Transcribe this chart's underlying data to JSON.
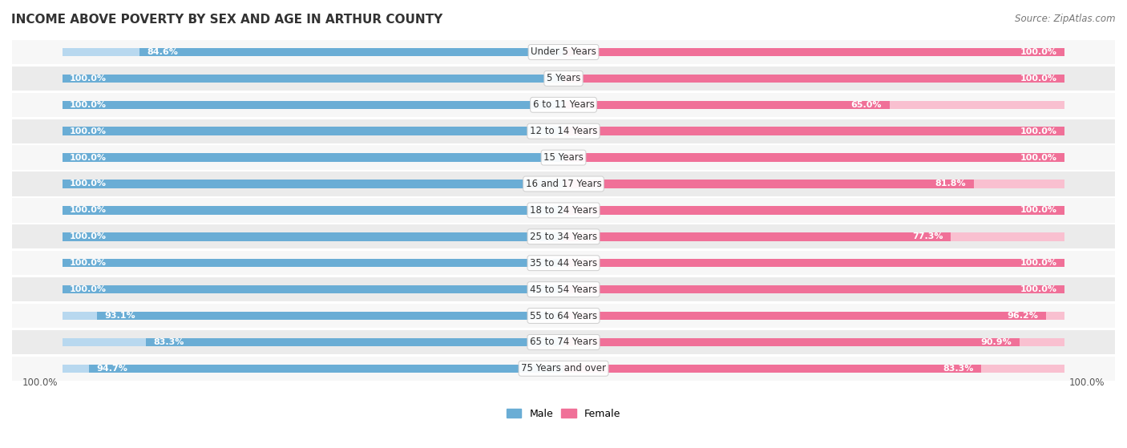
{
  "title": "INCOME ABOVE POVERTY BY SEX AND AGE IN ARTHUR COUNTY",
  "source": "Source: ZipAtlas.com",
  "categories": [
    "Under 5 Years",
    "5 Years",
    "6 to 11 Years",
    "12 to 14 Years",
    "15 Years",
    "16 and 17 Years",
    "18 to 24 Years",
    "25 to 34 Years",
    "35 to 44 Years",
    "45 to 54 Years",
    "55 to 64 Years",
    "65 to 74 Years",
    "75 Years and over"
  ],
  "male": [
    84.6,
    100.0,
    100.0,
    100.0,
    100.0,
    100.0,
    100.0,
    100.0,
    100.0,
    100.0,
    93.1,
    83.3,
    94.7
  ],
  "female": [
    100.0,
    100.0,
    65.0,
    100.0,
    100.0,
    81.8,
    100.0,
    77.3,
    100.0,
    100.0,
    96.2,
    90.9,
    83.3
  ],
  "male_color": "#6AADD5",
  "female_color": "#F07098",
  "male_light_color": "#B8D8EF",
  "female_light_color": "#F9C0D0",
  "row_bg_odd": "#ebebeb",
  "row_bg_even": "#f7f7f7",
  "bg_color": "#ffffff",
  "title_fontsize": 11,
  "source_fontsize": 8.5,
  "label_fontsize": 8,
  "cat_fontsize": 8.5,
  "tick_fontsize": 8.5,
  "legend_fontsize": 9,
  "max_val": 100.0
}
